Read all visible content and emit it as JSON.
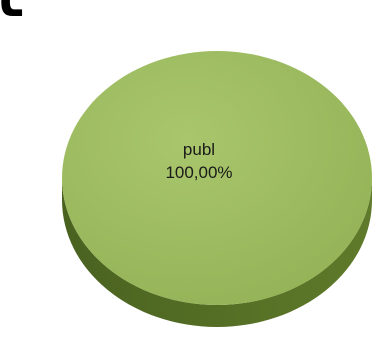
{
  "page_title_fragment": "l",
  "chart_data": {
    "type": "pie",
    "style": "3d",
    "slices": [
      {
        "label": "publ",
        "value": 100,
        "percent_label": "100,00%"
      }
    ],
    "colors": {
      "top": "#93b256",
      "top_highlight": "#a9c66c",
      "side": "#5f7a2a",
      "side_dark": "#4a6220"
    },
    "legend": "none"
  }
}
